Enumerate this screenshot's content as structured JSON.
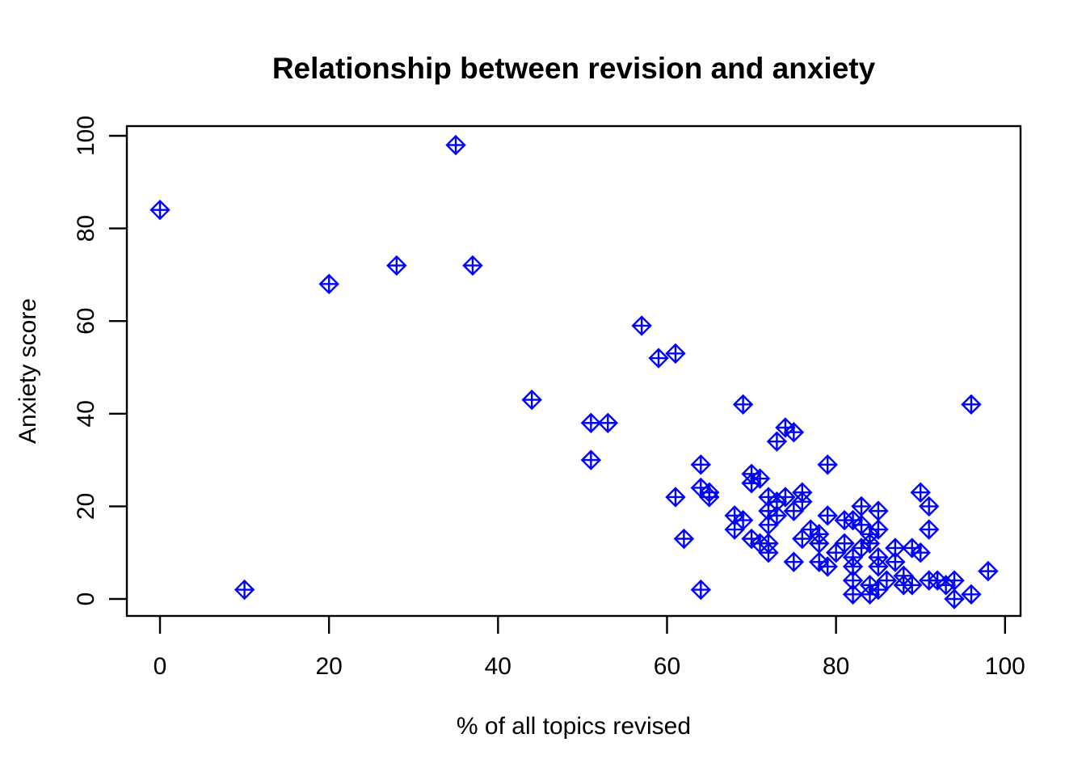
{
  "page": {
    "background_color": "#ffffff",
    "foreground_color": "#000000"
  },
  "chart_data": {
    "type": "scatter",
    "title": "Relationship between revision and anxiety",
    "xlabel": "% of all topics revised",
    "ylabel": "Anxiety score",
    "xlim": [
      0,
      100
    ],
    "ylim": [
      0,
      100
    ],
    "x_ticks": [
      "0",
      "20",
      "40",
      "60",
      "80",
      "100"
    ],
    "x_tick_values": [
      0,
      20,
      40,
      60,
      80,
      100
    ],
    "y_ticks": [
      "0",
      "20",
      "40",
      "60",
      "80",
      "100"
    ],
    "y_tick_values": [
      0,
      20,
      40,
      60,
      80,
      100
    ],
    "grid": false,
    "legend": "none",
    "marker": "diamond-plus",
    "marker_color": "#0000FF",
    "points": [
      [
        0,
        84
      ],
      [
        10,
        2
      ],
      [
        20,
        68
      ],
      [
        28,
        72
      ],
      [
        35,
        98
      ],
      [
        37,
        72
      ],
      [
        44,
        43
      ],
      [
        51,
        38
      ],
      [
        53,
        38
      ],
      [
        51,
        30
      ],
      [
        57,
        59
      ],
      [
        59,
        52
      ],
      [
        61,
        53
      ],
      [
        61,
        22
      ],
      [
        62,
        13
      ],
      [
        64,
        2
      ],
      [
        64,
        29
      ],
      [
        64,
        24
      ],
      [
        65,
        23
      ],
      [
        65,
        22
      ],
      [
        68,
        18
      ],
      [
        69,
        17
      ],
      [
        68,
        15
      ],
      [
        69,
        42
      ],
      [
        70,
        27
      ],
      [
        71,
        26
      ],
      [
        70,
        25
      ],
      [
        70,
        13
      ],
      [
        71,
        12
      ],
      [
        72,
        12
      ],
      [
        72,
        10
      ],
      [
        72,
        16
      ],
      [
        72,
        22
      ],
      [
        73,
        21
      ],
      [
        74,
        22
      ],
      [
        76,
        23
      ],
      [
        76,
        21
      ],
      [
        72,
        19
      ],
      [
        73,
        18
      ],
      [
        75,
        19
      ],
      [
        73,
        34
      ],
      [
        74,
        37
      ],
      [
        75,
        36
      ],
      [
        76,
        13
      ],
      [
        75,
        8
      ],
      [
        77,
        15
      ],
      [
        78,
        14
      ],
      [
        78,
        12
      ],
      [
        78,
        8
      ],
      [
        79,
        7
      ],
      [
        79,
        18
      ],
      [
        79,
        29
      ],
      [
        80,
        10
      ],
      [
        81,
        17
      ],
      [
        82,
        17
      ],
      [
        83,
        16
      ],
      [
        83,
        20
      ],
      [
        85,
        19
      ],
      [
        84,
        14
      ],
      [
        85,
        15
      ],
      [
        81,
        12
      ],
      [
        83,
        11
      ],
      [
        84,
        12
      ],
      [
        82,
        9
      ],
      [
        82,
        7
      ],
      [
        82,
        4
      ],
      [
        85,
        9
      ],
      [
        85,
        7
      ],
      [
        84,
        3
      ],
      [
        87,
        8
      ],
      [
        87,
        11
      ],
      [
        88,
        5
      ],
      [
        89,
        11
      ],
      [
        90,
        10
      ],
      [
        86,
        4
      ],
      [
        88,
        3
      ],
      [
        89,
        3
      ],
      [
        91,
        4
      ],
      [
        92,
        4
      ],
      [
        93,
        3
      ],
      [
        94,
        4
      ],
      [
        94,
        0
      ],
      [
        96,
        1
      ],
      [
        82,
        1
      ],
      [
        84,
        1
      ],
      [
        85,
        2
      ],
      [
        90,
        23
      ],
      [
        91,
        20
      ],
      [
        91,
        15
      ],
      [
        96,
        42
      ],
      [
        98,
        6
      ]
    ]
  }
}
